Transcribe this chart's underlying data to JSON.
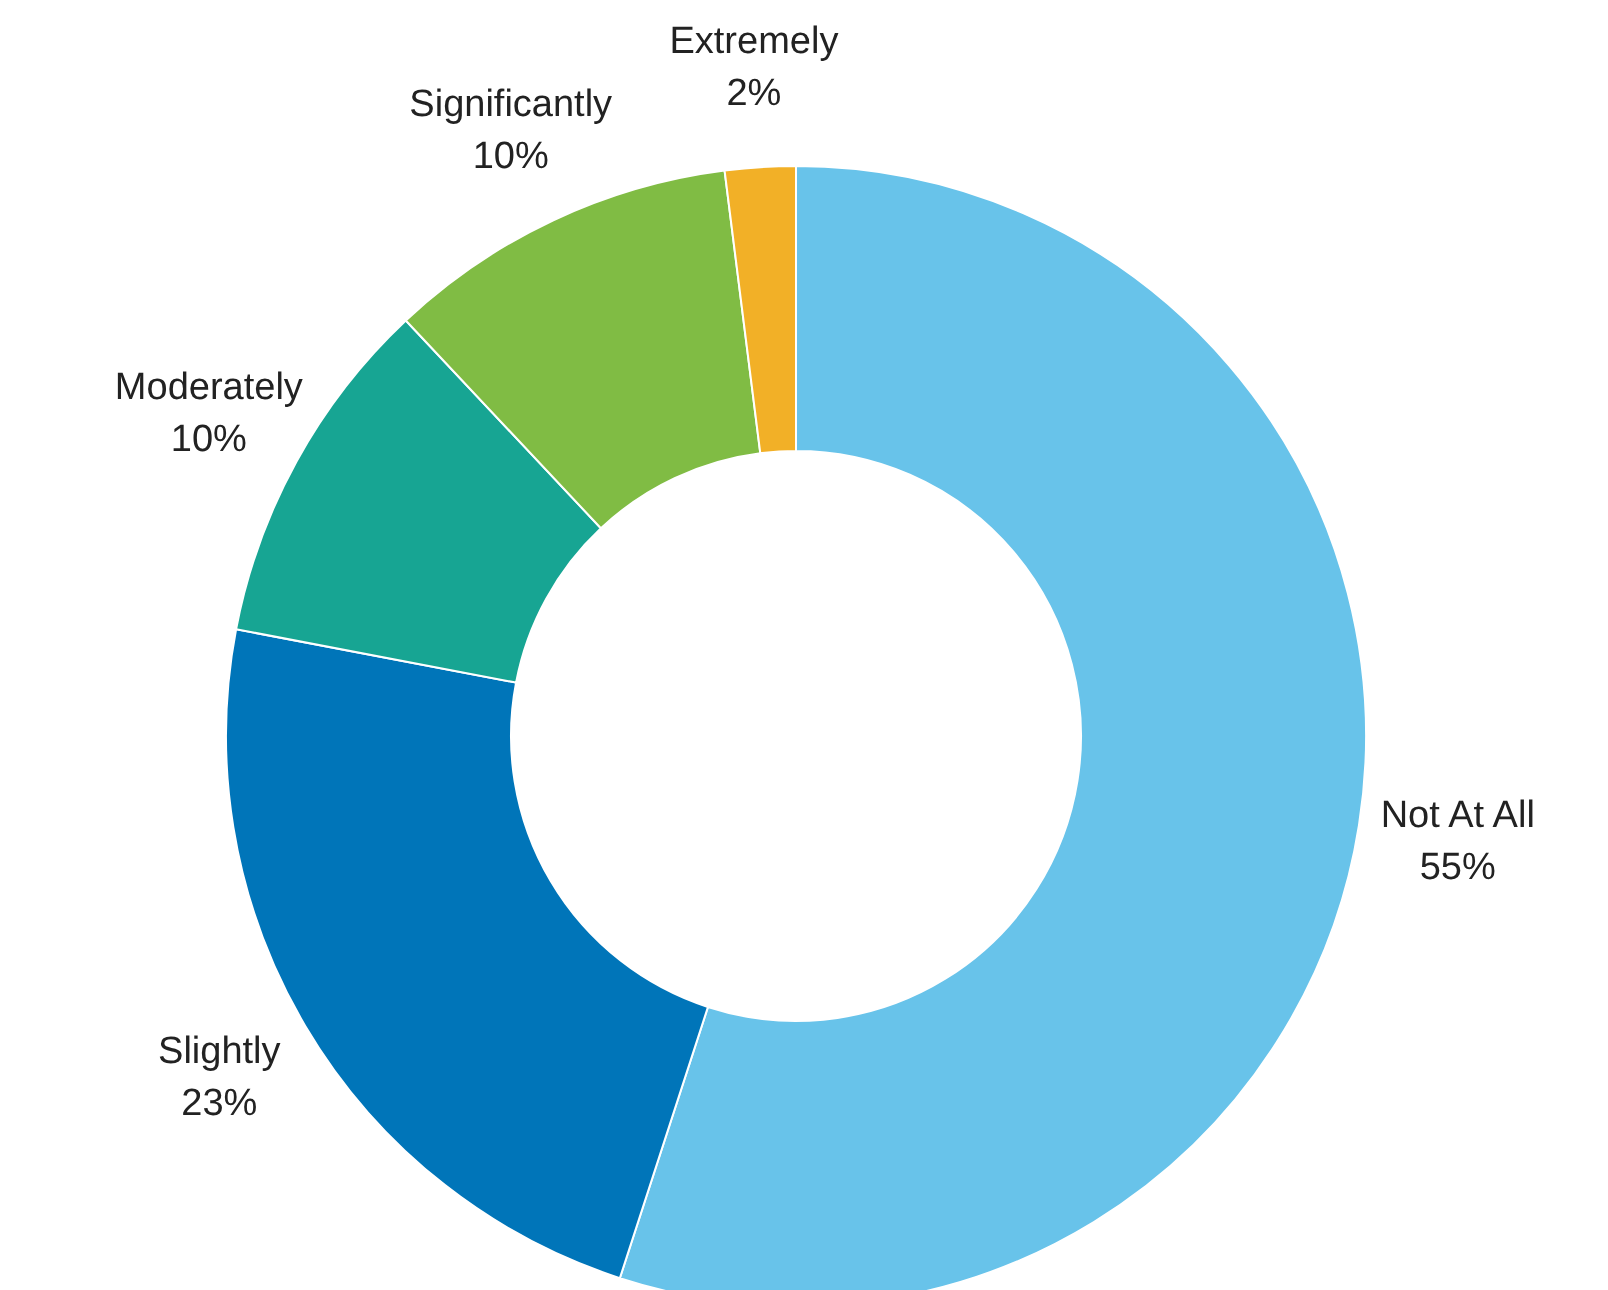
{
  "chart_data": {
    "type": "donut",
    "categories": [
      "Not At All",
      "Slightly",
      "Moderately",
      "Significantly",
      "Extremely"
    ],
    "values": [
      55,
      23,
      10,
      10,
      2
    ],
    "value_labels": [
      "55%",
      "23%",
      "10%",
      "10%",
      "2%"
    ],
    "colors": [
      "#68c3ea",
      "#0075b9",
      "#17a593",
      "#80bc44",
      "#f2b027"
    ]
  }
}
